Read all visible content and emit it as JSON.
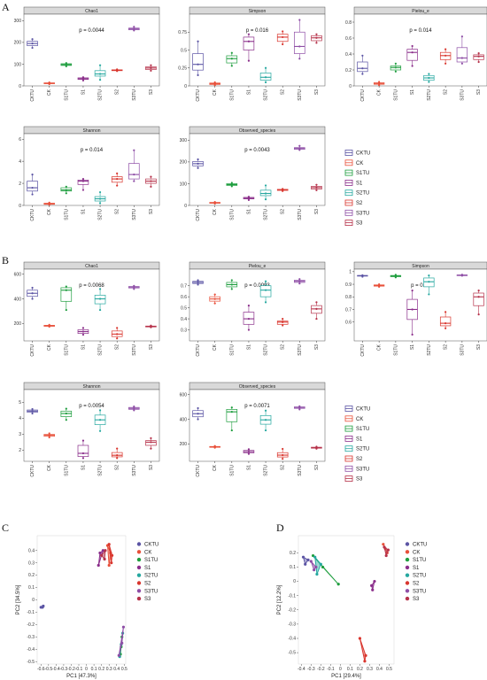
{
  "panel_labels": [
    "A",
    "B",
    "C",
    "D"
  ],
  "groups": [
    "CKTU",
    "CK",
    "S1TU",
    "S1",
    "S2TU",
    "S2",
    "S3TU",
    "S3"
  ],
  "group_colors": [
    "#5b54a4",
    "#e8503a",
    "#1f9e3f",
    "#8b2f8b",
    "#26a8a0",
    "#d9362e",
    "#8e4ea6",
    "#b6324a"
  ],
  "legend_A": [
    "CKTU",
    "CK",
    "S1TU",
    "S1",
    "S2TU",
    "S2",
    "S3TU",
    "S3"
  ],
  "legend_B": [
    "CKTU",
    "CK",
    "S1TU",
    "S1",
    "S2TU",
    "S2",
    "S3TU",
    "S3"
  ],
  "legend_C": [
    "CKTU",
    "CK",
    "S1TU",
    "S1",
    "S2TU",
    "S2",
    "S3TU",
    "S3"
  ],
  "legend_D": [
    "CKTU",
    "CK",
    "S1TU",
    "S1",
    "S2TU",
    "S2",
    "S3TU",
    "S3"
  ],
  "chart_data": [
    {
      "type": "box",
      "panel": "A",
      "title": "Chao1",
      "pvalue": "p = 0.0044",
      "ylim": [
        0,
        330
      ],
      "yticks": [
        0,
        100,
        200,
        300
      ],
      "categories": [
        "CKTU",
        "CK",
        "S1TU",
        "S1",
        "S2TU",
        "S2",
        "S3TU",
        "S3"
      ],
      "boxes": [
        [
          175,
          185,
          195,
          205,
          215
        ],
        [
          8,
          10,
          12,
          14,
          16
        ],
        [
          90,
          94,
          98,
          102,
          105
        ],
        [
          25,
          30,
          33,
          37,
          40
        ],
        [
          28,
          45,
          55,
          70,
          95
        ],
        [
          68,
          70,
          72,
          74,
          76
        ],
        [
          255,
          258,
          262,
          266,
          272
        ],
        [
          70,
          75,
          82,
          88,
          95
        ]
      ]
    },
    {
      "type": "box",
      "panel": "A",
      "title": "Simpson",
      "pvalue": "p = 0.016",
      "ylim": [
        0,
        1.0
      ],
      "yticks": [
        0,
        0.25,
        0.5,
        0.75
      ],
      "categories": [
        "CKTU",
        "CK",
        "S1TU",
        "S1",
        "S2TU",
        "S2",
        "S3TU",
        "S3"
      ],
      "boxes": [
        [
          0.15,
          0.22,
          0.3,
          0.45,
          0.62
        ],
        [
          0.01,
          0.02,
          0.03,
          0.04,
          0.05
        ],
        [
          0.28,
          0.32,
          0.38,
          0.42,
          0.46
        ],
        [
          0.35,
          0.5,
          0.62,
          0.68,
          0.72
        ],
        [
          0.05,
          0.08,
          0.12,
          0.18,
          0.25
        ],
        [
          0.58,
          0.62,
          0.68,
          0.72,
          0.76
        ],
        [
          0.38,
          0.45,
          0.55,
          0.75,
          0.92
        ],
        [
          0.6,
          0.63,
          0.67,
          0.7,
          0.72
        ]
      ]
    },
    {
      "type": "box",
      "panel": "A",
      "title": "Pielou_e",
      "pvalue": "p = 0.014",
      "ylim": [
        0,
        0.9
      ],
      "yticks": [
        0,
        0.2,
        0.4,
        0.6,
        0.8
      ],
      "categories": [
        "CKTU",
        "CK",
        "S1TU",
        "S1",
        "S2TU",
        "S2",
        "S3TU",
        "S3"
      ],
      "boxes": [
        [
          0.15,
          0.18,
          0.22,
          0.3,
          0.38
        ],
        [
          0.01,
          0.02,
          0.03,
          0.04,
          0.05
        ],
        [
          0.18,
          0.2,
          0.23,
          0.25,
          0.28
        ],
        [
          0.25,
          0.32,
          0.42,
          0.46,
          0.5
        ],
        [
          0.05,
          0.07,
          0.1,
          0.13,
          0.15
        ],
        [
          0.28,
          0.33,
          0.38,
          0.42,
          0.46
        ],
        [
          0.28,
          0.3,
          0.35,
          0.48,
          0.62
        ],
        [
          0.3,
          0.33,
          0.37,
          0.39,
          0.41
        ]
      ]
    },
    {
      "type": "box",
      "panel": "A",
      "title": "Shannon",
      "pvalue": "p = 0.014",
      "ylim": [
        0,
        6.5
      ],
      "yticks": [
        0,
        2,
        4,
        6
      ],
      "categories": [
        "CKTU",
        "CK",
        "S1TU",
        "S1",
        "S2TU",
        "S2",
        "S3TU",
        "S3"
      ],
      "boxes": [
        [
          1.0,
          1.3,
          1.6,
          2.2,
          2.8
        ],
        [
          0.05,
          0.1,
          0.15,
          0.2,
          0.25
        ],
        [
          1.1,
          1.3,
          1.4,
          1.6,
          1.7
        ],
        [
          1.4,
          1.9,
          2.2,
          2.3,
          2.4
        ],
        [
          0.2,
          0.4,
          0.6,
          0.8,
          1.2
        ],
        [
          1.8,
          2.1,
          2.4,
          2.6,
          2.9
        ],
        [
          2.2,
          2.4,
          2.8,
          3.8,
          5.0
        ],
        [
          1.7,
          2.0,
          2.2,
          2.4,
          2.6
        ]
      ]
    },
    {
      "type": "box",
      "panel": "A",
      "title": "Observed_species",
      "pvalue": "p = 0.0043",
      "ylim": [
        0,
        330
      ],
      "yticks": [
        0,
        100,
        200,
        300
      ],
      "categories": [
        "CKTU",
        "CK",
        "S1TU",
        "S1",
        "S2TU",
        "S2",
        "S3TU",
        "S3"
      ],
      "boxes": [
        [
          172,
          182,
          192,
          202,
          212
        ],
        [
          8,
          10,
          12,
          14,
          16
        ],
        [
          88,
          92,
          96,
          100,
          104
        ],
        [
          25,
          30,
          33,
          37,
          40
        ],
        [
          28,
          45,
          55,
          70,
          92
        ],
        [
          66,
          69,
          72,
          74,
          76
        ],
        [
          255,
          258,
          262,
          266,
          274
        ],
        [
          70,
          75,
          82,
          88,
          95
        ]
      ]
    },
    {
      "type": "box",
      "panel": "B",
      "title": "Chao1",
      "pvalue": "p = 0.0068",
      "ylim": [
        60,
        640
      ],
      "yticks": [
        200,
        400,
        600
      ],
      "categories": [
        "CKTU",
        "CK",
        "S1TU",
        "S1",
        "S2TU",
        "S2",
        "S3TU",
        "S3"
      ],
      "boxes": [
        [
          400,
          420,
          445,
          470,
          490
        ],
        [
          175,
          178,
          182,
          186,
          190
        ],
        [
          310,
          380,
          470,
          490,
          500
        ],
        [
          110,
          120,
          135,
          150,
          165
        ],
        [
          310,
          360,
          400,
          430,
          480
        ],
        [
          80,
          95,
          115,
          140,
          165
        ],
        [
          480,
          488,
          495,
          500,
          505
        ],
        [
          170,
          173,
          176,
          180,
          184
        ]
      ]
    },
    {
      "type": "box",
      "panel": "B",
      "title": "Pielou_e",
      "pvalue": "p = 0.0093",
      "ylim": [
        0.2,
        0.85
      ],
      "yticks": [
        0.3,
        0.4,
        0.5,
        0.6,
        0.7
      ],
      "categories": [
        "CKTU",
        "CK",
        "S1TU",
        "S1",
        "S2TU",
        "S2",
        "S3TU",
        "S3"
      ],
      "boxes": [
        [
          0.71,
          0.72,
          0.73,
          0.74,
          0.75
        ],
        [
          0.54,
          0.56,
          0.58,
          0.6,
          0.62
        ],
        [
          0.67,
          0.69,
          0.71,
          0.73,
          0.75
        ],
        [
          0.3,
          0.35,
          0.4,
          0.46,
          0.52
        ],
        [
          0.55,
          0.6,
          0.66,
          0.7,
          0.74
        ],
        [
          0.34,
          0.35,
          0.37,
          0.38,
          0.4
        ],
        [
          0.72,
          0.73,
          0.74,
          0.75,
          0.76
        ],
        [
          0.4,
          0.45,
          0.49,
          0.52,
          0.55
        ]
      ]
    },
    {
      "type": "box",
      "panel": "B",
      "title": "Simpson",
      "pvalue": "p = 0.01",
      "ylim": [
        0.45,
        1.02
      ],
      "yticks": [
        0.6,
        0.7,
        0.8,
        0.9,
        1.0
      ],
      "categories": [
        "CKTU",
        "CK",
        "S1TU",
        "S1",
        "S2TU",
        "S2",
        "S3TU",
        "S3"
      ],
      "boxes": [
        [
          0.96,
          0.965,
          0.968,
          0.97,
          0.972
        ],
        [
          0.88,
          0.885,
          0.89,
          0.895,
          0.9
        ],
        [
          0.955,
          0.96,
          0.965,
          0.97,
          0.975
        ],
        [
          0.5,
          0.62,
          0.7,
          0.78,
          0.85
        ],
        [
          0.82,
          0.88,
          0.92,
          0.95,
          0.97
        ],
        [
          0.55,
          0.57,
          0.59,
          0.64,
          0.68
        ],
        [
          0.968,
          0.97,
          0.972,
          0.974,
          0.976
        ],
        [
          0.66,
          0.73,
          0.8,
          0.83,
          0.85
        ]
      ]
    },
    {
      "type": "box",
      "panel": "B",
      "title": "Shannon",
      "pvalue": "p = 0.0054",
      "ylim": [
        1.3,
        5.8
      ],
      "yticks": [
        2,
        3,
        4,
        5
      ],
      "categories": [
        "CKTU",
        "CK",
        "S1TU",
        "S1",
        "S2TU",
        "S2",
        "S3TU",
        "S3"
      ],
      "boxes": [
        [
          4.3,
          4.38,
          4.45,
          4.52,
          4.58
        ],
        [
          2.8,
          2.87,
          2.93,
          2.99,
          3.05
        ],
        [
          3.9,
          4.1,
          4.3,
          4.45,
          4.6
        ],
        [
          1.5,
          1.6,
          1.8,
          2.3,
          2.6
        ],
        [
          3.2,
          3.6,
          3.9,
          4.2,
          4.5
        ],
        [
          1.5,
          1.58,
          1.68,
          1.85,
          2.1
        ],
        [
          4.5,
          4.56,
          4.62,
          4.68,
          4.74
        ],
        [
          2.1,
          2.3,
          2.5,
          2.6,
          2.75
        ]
      ]
    },
    {
      "type": "box",
      "panel": "B",
      "title": "Observed_species",
      "pvalue": "p = 0.0071",
      "ylim": [
        60,
        640
      ],
      "yticks": [
        200,
        400,
        600
      ],
      "categories": [
        "CKTU",
        "CK",
        "S1TU",
        "S1",
        "S2TU",
        "S2",
        "S3TU",
        "S3"
      ],
      "boxes": [
        [
          400,
          420,
          445,
          470,
          490
        ],
        [
          170,
          173,
          176,
          180,
          184
        ],
        [
          310,
          380,
          460,
          480,
          495
        ],
        [
          120,
          128,
          138,
          148,
          158
        ],
        [
          310,
          360,
          395,
          430,
          470
        ],
        [
          80,
          95,
          110,
          130,
          160
        ],
        [
          480,
          488,
          495,
          500,
          505
        ],
        [
          162,
          166,
          170,
          174,
          178
        ]
      ]
    },
    {
      "type": "scatter",
      "panel": "C",
      "xlabel": "PC1 [47.3%]",
      "ylabel": "PC2 [34.5%]",
      "xlim": [
        -0.65,
        0.52
      ],
      "ylim": [
        -0.52,
        0.52
      ],
      "xticks": [
        -0.6,
        -0.5,
        -0.4,
        -0.3,
        -0.2,
        -0.1,
        0,
        0.1,
        0.2,
        0.3,
        0.4,
        0.5
      ],
      "yticks": [
        -0.5,
        -0.4,
        -0.3,
        -0.2,
        -0.1,
        0,
        0.1,
        0.2,
        0.3,
        0.4
      ],
      "series": [
        {
          "group": "CKTU",
          "points": [
            [
              -0.6,
              -0.06
            ],
            [
              -0.57,
              -0.05
            ],
            [
              -0.58,
              -0.06
            ]
          ]
        },
        {
          "group": "CK",
          "points": [
            [
              0.28,
              0.44
            ],
            [
              0.32,
              0.38
            ],
            [
              0.3,
              0.28
            ]
          ]
        },
        {
          "group": "S1TU",
          "points": [
            [
              0.45,
              -0.44
            ],
            [
              0.47,
              -0.3
            ],
            [
              0.46,
              -0.38
            ]
          ]
        },
        {
          "group": "S1",
          "points": [
            [
              0.18,
              0.38
            ],
            [
              0.22,
              0.4
            ],
            [
              0.16,
              0.28
            ]
          ]
        },
        {
          "group": "S2TU",
          "points": [
            [
              0.44,
              -0.46
            ],
            [
              0.48,
              -0.27
            ],
            [
              0.46,
              -0.36
            ]
          ]
        },
        {
          "group": "S2",
          "points": [
            [
              0.3,
              0.45
            ],
            [
              0.34,
              0.36
            ],
            [
              0.33,
              0.3
            ]
          ]
        },
        {
          "group": "S3TU",
          "points": [
            [
              0.43,
              -0.45
            ],
            [
              0.49,
              -0.22
            ],
            [
              0.47,
              -0.35
            ]
          ]
        },
        {
          "group": "S3",
          "points": [
            [
              0.2,
              0.36
            ],
            [
              0.25,
              0.4
            ],
            [
              0.24,
              0.33
            ]
          ]
        }
      ]
    },
    {
      "type": "scatter",
      "panel": "D",
      "xlabel": "PC1 [29.4%]",
      "ylabel": "PC2 [12.2%]",
      "xlim": [
        -0.43,
        0.55
      ],
      "ylim": [
        -0.58,
        0.32
      ],
      "xticks": [
        -0.4,
        -0.3,
        -0.2,
        -0.1,
        0,
        0.1,
        0.2,
        0.3,
        0.4,
        0.5
      ],
      "yticks": [
        -0.5,
        -0.4,
        -0.3,
        -0.2,
        -0.1,
        0,
        0.1,
        0.2
      ],
      "series": [
        {
          "group": "CKTU",
          "points": [
            [
              -0.38,
              0.17
            ],
            [
              -0.33,
              0.15
            ],
            [
              -0.36,
              0.12
            ]
          ]
        },
        {
          "group": "CK",
          "points": [
            [
              0.44,
              0.26
            ],
            [
              0.48,
              0.2
            ],
            [
              0.46,
              0.23
            ]
          ]
        },
        {
          "group": "S1TU",
          "points": [
            [
              -0.28,
              0.18
            ],
            [
              -0.18,
              0.1
            ],
            [
              -0.02,
              -0.02
            ]
          ]
        },
        {
          "group": "S1",
          "points": [
            [
              0.32,
              -0.03
            ],
            [
              0.35,
              0.0
            ],
            [
              0.33,
              -0.06
            ]
          ]
        },
        {
          "group": "S2TU",
          "points": [
            [
              -0.26,
              0.17
            ],
            [
              -0.2,
              0.12
            ],
            [
              -0.24,
              0.05
            ]
          ]
        },
        {
          "group": "S2",
          "points": [
            [
              0.2,
              -0.4
            ],
            [
              0.26,
              -0.52
            ],
            [
              0.25,
              -0.56
            ]
          ]
        },
        {
          "group": "S3TU",
          "points": [
            [
              -0.3,
              0.14
            ],
            [
              -0.25,
              0.1
            ],
            [
              -0.27,
              0.08
            ]
          ]
        },
        {
          "group": "S3",
          "points": [
            [
              0.45,
              0.24
            ],
            [
              0.47,
              0.18
            ],
            [
              0.49,
              0.22
            ]
          ]
        }
      ]
    }
  ]
}
